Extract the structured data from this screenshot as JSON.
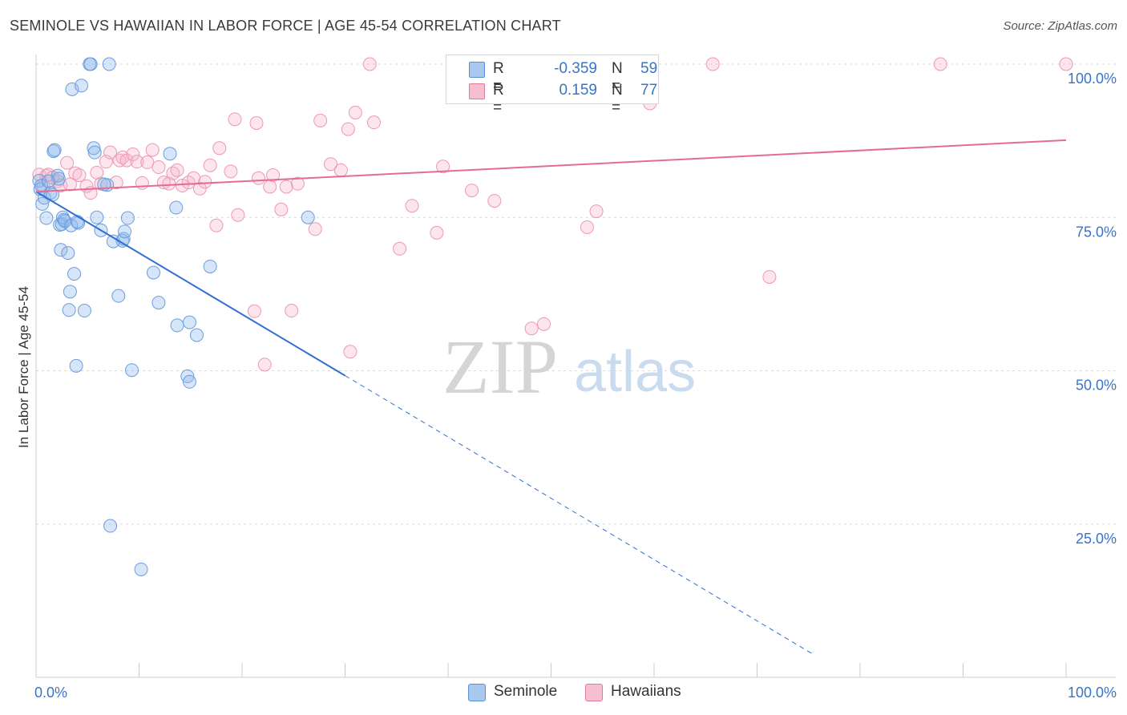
{
  "title": "SEMINOLE VS HAWAIIAN IN LABOR FORCE | AGE 45-54 CORRELATION CHART",
  "source": "Source: ZipAtlas.com",
  "watermark": {
    "zip": "ZIP",
    "atlas": "atlas"
  },
  "legend": {
    "r_label": "R =",
    "n_label": "N =",
    "rows": [
      {
        "r": "-0.359",
        "n": "59",
        "color": "#a9c8f0",
        "border": "#5a8fd6"
      },
      {
        "r": "0.159",
        "n": "77",
        "color": "#f6bfd0",
        "border": "#e07a9e"
      }
    ]
  },
  "bottom_legend": [
    {
      "label": "Seminole",
      "color": "#a9c8f0",
      "border": "#5a8fd6"
    },
    {
      "label": "Hawaiians",
      "color": "#f6bfd0",
      "border": "#e07a9e"
    }
  ],
  "colors": {
    "seminole_fill": "rgba(140,180,235,0.35)",
    "seminole_stroke": "#6a9ee0",
    "seminole_line": "#2f6fd0",
    "hawaiian_fill": "rgba(246,180,200,0.35)",
    "hawaiian_stroke": "#ec99b5",
    "hawaiian_line": "#e56b95",
    "axis_text": "#3a74c7",
    "grid": "#d9d9d9"
  },
  "chart_data": {
    "type": "scatter",
    "title": "SEMINOLE VS HAWAIIAN IN LABOR FORCE | AGE 45-54 CORRELATION CHART",
    "xlabel": "",
    "ylabel": "In Labor Force | Age 45-54",
    "xlim": [
      0,
      100
    ],
    "ylim": [
      0,
      100
    ],
    "x_tick_labels": [
      {
        "value": 0,
        "label": "0.0%"
      },
      {
        "value": 100,
        "label": "100.0%"
      }
    ],
    "y_tick_labels": [
      {
        "value": 25,
        "label": "25.0%"
      },
      {
        "value": 50,
        "label": "50.0%"
      },
      {
        "value": 75,
        "label": "75.0%"
      },
      {
        "value": 100,
        "label": "100.0%"
      }
    ],
    "series": [
      {
        "name": "Seminole",
        "r": -0.359,
        "n": 59,
        "trend": {
          "x0": 0,
          "y0": 79.2,
          "x1": 30,
          "y1": 49.2,
          "dashed_to_x": 75.6
        },
        "points": [
          [
            0.3,
            81.0
          ],
          [
            0.4,
            79.6
          ],
          [
            0.6,
            77.2
          ],
          [
            0.8,
            78.2
          ],
          [
            1.0,
            74.9
          ],
          [
            1.4,
            79.0
          ],
          [
            1.6,
            78.7
          ],
          [
            1.7,
            85.8
          ],
          [
            1.8,
            86.0
          ],
          [
            2.1,
            81.8
          ],
          [
            2.2,
            81.3
          ],
          [
            2.3,
            73.8
          ],
          [
            2.4,
            69.7
          ],
          [
            2.5,
            73.9
          ],
          [
            2.6,
            75.0
          ],
          [
            2.7,
            74.6
          ],
          [
            2.8,
            74.4
          ],
          [
            3.1,
            69.2
          ],
          [
            3.2,
            59.9
          ],
          [
            3.3,
            62.9
          ],
          [
            3.4,
            73.7
          ],
          [
            3.5,
            95.9
          ],
          [
            3.7,
            65.8
          ],
          [
            3.9,
            50.8
          ],
          [
            4.1,
            74.1
          ],
          [
            4.4,
            96.5
          ],
          [
            4.7,
            59.8
          ],
          [
            5.2,
            100.0
          ],
          [
            5.3,
            100.0
          ],
          [
            5.6,
            86.3
          ],
          [
            5.7,
            85.6
          ],
          [
            5.9,
            75.0
          ],
          [
            6.3,
            72.9
          ],
          [
            6.9,
            80.3
          ],
          [
            7.1,
            100.0
          ],
          [
            7.2,
            24.7
          ],
          [
            7.5,
            71.1
          ],
          [
            8.0,
            62.2
          ],
          [
            8.4,
            71.2
          ],
          [
            8.5,
            71.5
          ],
          [
            8.6,
            72.7
          ],
          [
            8.9,
            74.9
          ],
          [
            9.3,
            50.1
          ],
          [
            10.2,
            17.6
          ],
          [
            11.4,
            66.0
          ],
          [
            11.9,
            61.1
          ],
          [
            13.0,
            85.4
          ],
          [
            13.6,
            76.6
          ],
          [
            13.7,
            57.4
          ],
          [
            14.7,
            49.1
          ],
          [
            14.9,
            48.2
          ],
          [
            14.9,
            57.9
          ],
          [
            15.6,
            55.8
          ],
          [
            16.9,
            67.0
          ],
          [
            26.4,
            75.0
          ],
          [
            0.5,
            80.2
          ],
          [
            1.2,
            80.9
          ],
          [
            4.0,
            74.3
          ],
          [
            6.6,
            80.4
          ]
        ]
      },
      {
        "name": "Hawaiians",
        "r": 0.159,
        "n": 77,
        "trend": {
          "x0": 0,
          "y0": 79.2,
          "x1": 100,
          "y1": 87.6
        },
        "points": [
          [
            0.3,
            82.0
          ],
          [
            0.7,
            80.1
          ],
          [
            1.0,
            81.8
          ],
          [
            1.2,
            82.0
          ],
          [
            1.6,
            81.5
          ],
          [
            2.1,
            80.9
          ],
          [
            2.4,
            80.2
          ],
          [
            3.0,
            83.9
          ],
          [
            3.3,
            80.4
          ],
          [
            3.8,
            82.2
          ],
          [
            4.2,
            81.9
          ],
          [
            4.9,
            80.1
          ],
          [
            5.3,
            79.0
          ],
          [
            5.9,
            82.3
          ],
          [
            6.3,
            80.5
          ],
          [
            6.8,
            84.1
          ],
          [
            7.2,
            85.6
          ],
          [
            7.8,
            80.7
          ],
          [
            8.1,
            84.3
          ],
          [
            8.4,
            84.8
          ],
          [
            8.8,
            84.3
          ],
          [
            9.4,
            85.3
          ],
          [
            9.8,
            84.1
          ],
          [
            10.3,
            80.6
          ],
          [
            10.8,
            84.0
          ],
          [
            11.3,
            86.0
          ],
          [
            11.9,
            83.2
          ],
          [
            12.4,
            80.7
          ],
          [
            12.9,
            80.5
          ],
          [
            13.3,
            82.2
          ],
          [
            13.7,
            82.7
          ],
          [
            14.2,
            80.2
          ],
          [
            14.8,
            80.7
          ],
          [
            15.3,
            81.4
          ],
          [
            15.9,
            79.7
          ],
          [
            16.4,
            80.8
          ],
          [
            16.9,
            83.5
          ],
          [
            17.5,
            73.7
          ],
          [
            17.8,
            86.3
          ],
          [
            18.9,
            82.5
          ],
          [
            19.3,
            91.0
          ],
          [
            19.6,
            75.4
          ],
          [
            21.2,
            59.7
          ],
          [
            21.6,
            81.4
          ],
          [
            21.4,
            90.4
          ],
          [
            22.2,
            51.0
          ],
          [
            22.7,
            80.0
          ],
          [
            23.0,
            81.9
          ],
          [
            23.8,
            76.3
          ],
          [
            24.3,
            80.0
          ],
          [
            24.8,
            59.8
          ],
          [
            25.4,
            80.5
          ],
          [
            27.1,
            73.1
          ],
          [
            27.6,
            90.8
          ],
          [
            28.6,
            83.7
          ],
          [
            29.6,
            82.7
          ],
          [
            30.3,
            89.4
          ],
          [
            30.5,
            53.1
          ],
          [
            31.0,
            92.1
          ],
          [
            32.4,
            100.0
          ],
          [
            32.8,
            90.5
          ],
          [
            35.3,
            69.9
          ],
          [
            36.5,
            76.9
          ],
          [
            38.9,
            72.5
          ],
          [
            39.5,
            83.3
          ],
          [
            42.3,
            79.4
          ],
          [
            44.5,
            77.7
          ],
          [
            48.1,
            56.9
          ],
          [
            49.3,
            57.6
          ],
          [
            53.5,
            73.4
          ],
          [
            54.4,
            76.0
          ],
          [
            59.6,
            93.6
          ],
          [
            65.7,
            100.0
          ],
          [
            71.2,
            65.3
          ],
          [
            87.8,
            100.0
          ],
          [
            100.0,
            100.0
          ],
          [
            47.5,
            97.2
          ]
        ]
      }
    ]
  }
}
